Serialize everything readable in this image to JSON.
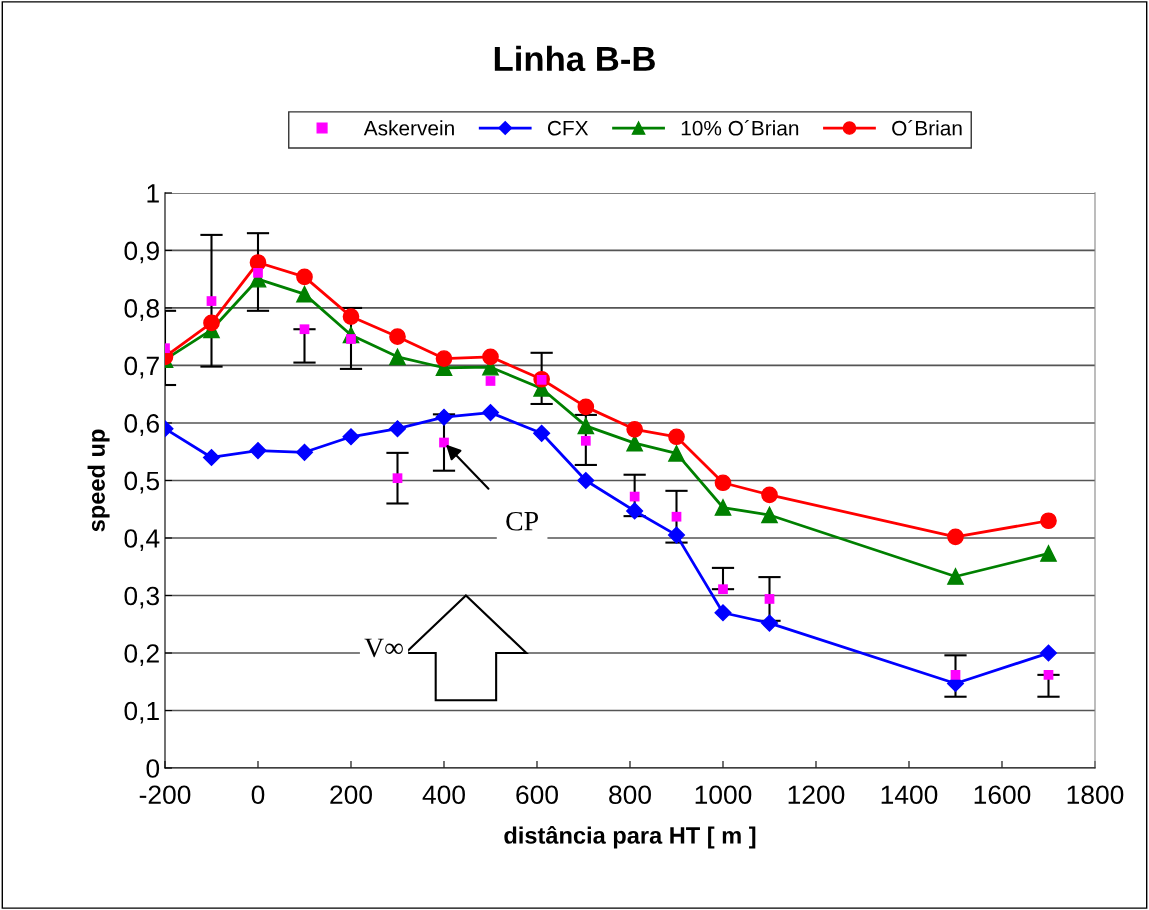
{
  "chart_data": {
    "type": "line",
    "title": "Linha B-B",
    "xlabel": "distância para HT [ m ]",
    "ylabel": "speed up",
    "x": [
      -200,
      -100,
      0,
      100,
      200,
      300,
      400,
      500,
      610,
      705,
      810,
      900,
      1000,
      1100,
      1500,
      1700
    ],
    "series": [
      {
        "name": "Askervein",
        "type": "scatter",
        "color": "#ff00ff",
        "marker": "square",
        "values": [
          0.73,
          0.812,
          0.861,
          0.763,
          0.746,
          0.504,
          0.566,
          0.673,
          0.675,
          0.569,
          0.472,
          0.437,
          0.311,
          0.294,
          0.162,
          0.162
        ],
        "errors": [
          [
            0.666,
            0.795
          ],
          [
            0.698,
            0.927
          ],
          [
            0.795,
            0.93
          ],
          [
            0.705,
            0.763
          ],
          [
            0.694,
            0.8
          ],
          [
            0.46,
            0.548
          ],
          [
            0.517,
            0.615
          ],
          null,
          [
            0.633,
            0.722
          ],
          [
            0.527,
            0.614
          ],
          [
            0.438,
            0.51
          ],
          [
            0.392,
            0.482
          ],
          [
            0.311,
            0.348
          ],
          [
            0.256,
            0.332
          ],
          [
            0.124,
            0.196
          ],
          [
            0.124,
            0.162
          ]
        ]
      },
      {
        "name": "CFX",
        "color": "#0000ff",
        "marker": "diamond",
        "values": [
          0.59,
          0.54,
          0.552,
          0.549,
          0.576,
          0.59,
          0.61,
          0.618,
          0.582,
          0.5,
          0.447,
          0.405,
          0.27,
          0.252,
          0.147,
          0.2
        ]
      },
      {
        "name": "10% O´Brian",
        "color": "#008000",
        "marker": "triangle",
        "values": [
          0.71,
          0.762,
          0.85,
          0.824,
          0.753,
          0.715,
          0.696,
          0.697,
          0.66,
          0.595,
          0.565,
          0.547,
          0.453,
          0.44,
          0.333,
          0.373
        ]
      },
      {
        "name": "O´Brian",
        "color": "#ff0000",
        "marker": "circle",
        "values": [
          0.715,
          0.774,
          0.879,
          0.854,
          0.785,
          0.75,
          0.712,
          0.715,
          0.676,
          0.628,
          0.589,
          0.576,
          0.496,
          0.475,
          0.402,
          0.43
        ]
      }
    ],
    "xlim": [
      -200,
      1800
    ],
    "xticks": [
      -200,
      0,
      200,
      400,
      600,
      800,
      1000,
      1200,
      1400,
      1600,
      1800
    ],
    "ylim": [
      0,
      1
    ],
    "yticks": [
      0,
      {
        "value": 0.1,
        "label": "0,1"
      },
      {
        "value": 0.2,
        "label": "0,2"
      },
      {
        "value": 0.3,
        "label": "0,3"
      },
      {
        "value": 0.4,
        "label": "0,4"
      },
      {
        "value": 0.5,
        "label": "0,5"
      },
      {
        "value": 0.6,
        "label": "0,6"
      },
      {
        "value": 0.7,
        "label": "0,7"
      },
      {
        "value": 0.8,
        "label": "0,8"
      },
      {
        "value": 0.9,
        "label": "0,9"
      },
      1
    ],
    "annotations": [
      {
        "text": "CP",
        "x": 400,
        "y": 0.566
      },
      "V∞"
    ],
    "grid": "y",
    "legend": "top",
    "line_style": "solid"
  }
}
